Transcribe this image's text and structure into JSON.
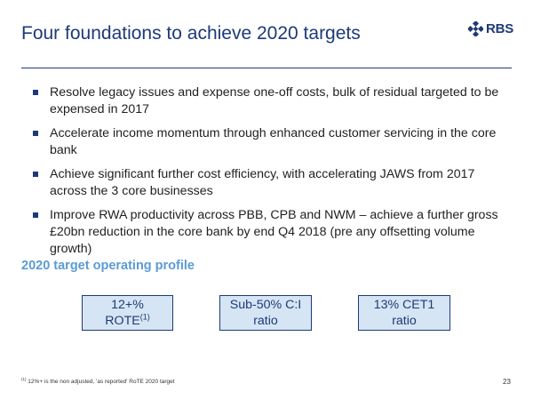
{
  "slide": {
    "title": "Four foundations to achieve 2020 targets",
    "logo_text": "RBS",
    "bullets": [
      "Resolve legacy issues and expense one-off costs, bulk of residual targeted to be expensed in 2017",
      "Accelerate income momentum through enhanced customer servicing in the core bank",
      "Achieve significant further cost efficiency, with accelerating JAWS from 2017 across the 3 core businesses",
      "Improve RWA productivity across PBB, CPB and NWM – achieve a further gross £20bn reduction in the core bank by end Q4 2018 (pre any offsetting volume growth)"
    ],
    "subhead": "2020 target operating profile",
    "boxes": [
      {
        "line1": "12+%",
        "line2": "ROTE",
        "sup": "(1)"
      },
      {
        "line1": "Sub-50% C:I",
        "line2": "ratio"
      },
      {
        "line1": "13% CET1",
        "line2": "ratio"
      }
    ],
    "footnote": {
      "marker": "(1)",
      "text": " 12%+ is the non adjusted, 'as reported' RoTE 2020 target"
    },
    "page_number": "23",
    "colors": {
      "navy": "#1d3a78",
      "accent": "#5b9bd5",
      "box_fill": "#d6e5f4"
    }
  }
}
